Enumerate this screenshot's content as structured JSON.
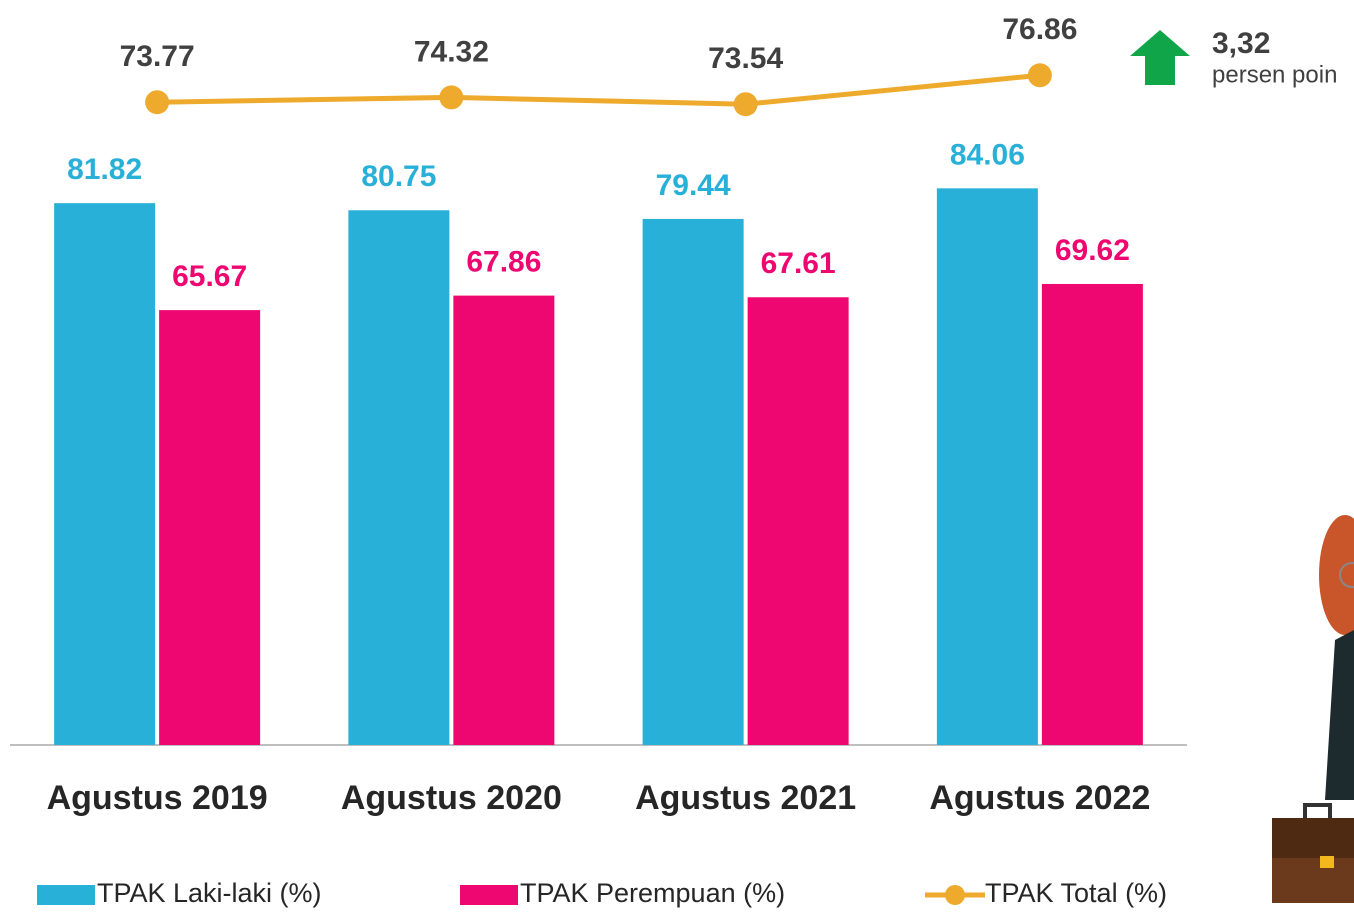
{
  "chart_data": {
    "type": "bar",
    "categories": [
      "Agustus 2019",
      "Agustus 2020",
      "Agustus 2021",
      "Agustus 2022"
    ],
    "series": [
      {
        "name": "TPAK Laki-laki (%)",
        "color": "#29b0d8",
        "values": [
          81.82,
          80.75,
          79.44,
          84.06
        ]
      },
      {
        "name": "TPAK Perempuan (%)",
        "color": "#ee0671",
        "values": [
          65.67,
          67.86,
          67.61,
          69.62
        ]
      },
      {
        "name": "TPAK Total (%)",
        "type": "line",
        "axis": "y2",
        "color": "#eeaa2c",
        "values": [
          73.77,
          74.32,
          73.54,
          76.86
        ]
      }
    ],
    "ylim": [
      0,
      112.5
    ],
    "y2lim": [
      0,
      85.5
    ],
    "annotations": {
      "value": "3,32",
      "unit": "persen poin"
    },
    "legend": "bottom"
  }
}
